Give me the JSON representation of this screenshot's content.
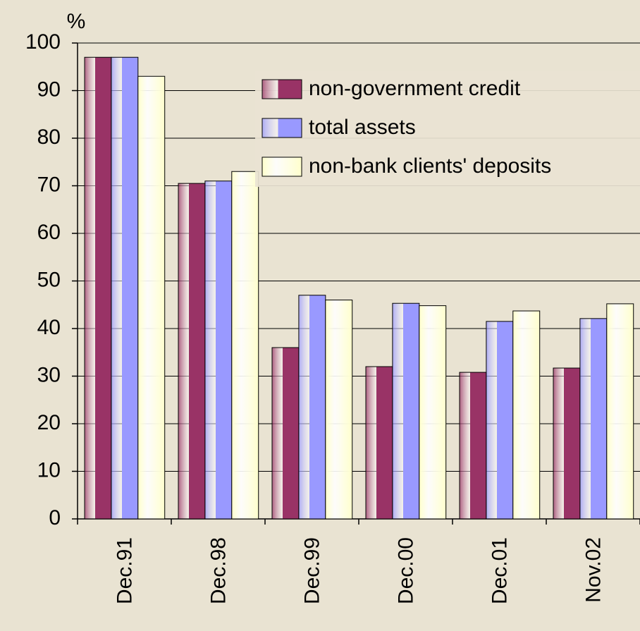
{
  "chart_data": {
    "type": "bar",
    "y_label": "%",
    "categories": [
      "Dec.91",
      "Dec.98",
      "Dec.99",
      "Dec.00",
      "Dec.01",
      "Nov.02"
    ],
    "series": [
      {
        "name": "non-government credit",
        "color": "#993366",
        "values": [
          97,
          70.5,
          36,
          32,
          30.8,
          31.7
        ]
      },
      {
        "name": "total assets",
        "color": "#9999ff",
        "values": [
          97,
          71,
          47,
          45.3,
          41.5,
          42.1
        ]
      },
      {
        "name": "non-bank clients' deposits",
        "color": "#ffffcc",
        "values": [
          93,
          73,
          46,
          44.8,
          43.7,
          45.2
        ]
      }
    ],
    "ylim": [
      0,
      100
    ],
    "yticks": [
      0,
      10,
      20,
      30,
      40,
      50,
      60,
      70,
      80,
      90,
      100
    ],
    "grid": true,
    "legend": "top-right"
  }
}
